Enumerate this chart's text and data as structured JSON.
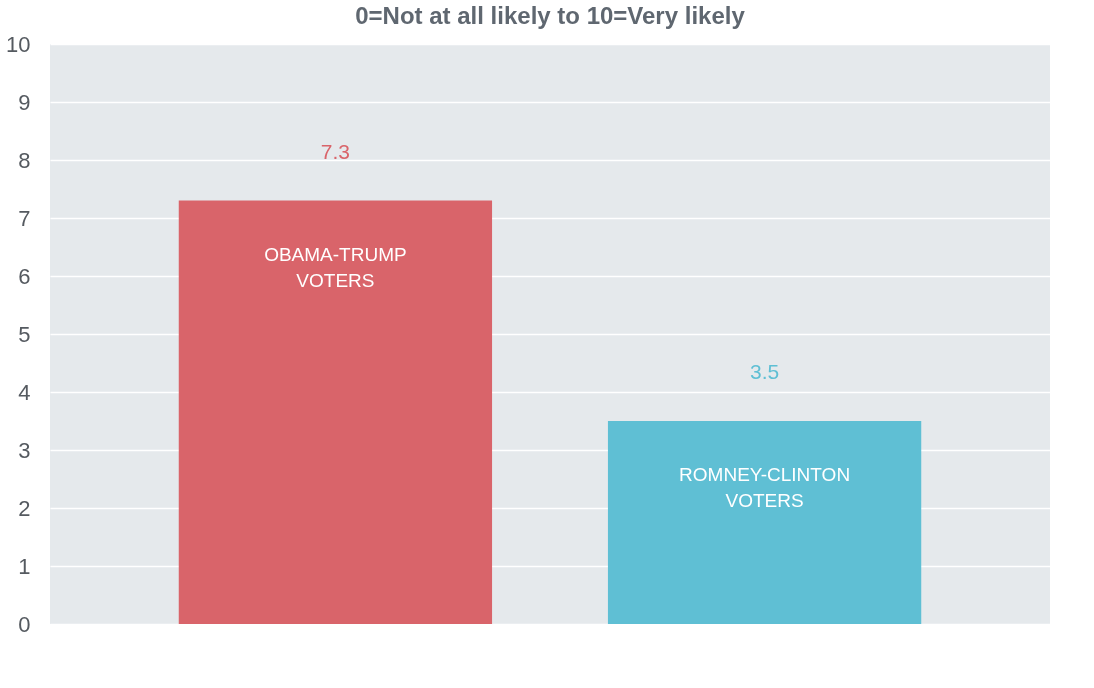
{
  "chart_data": {
    "type": "bar",
    "title": "0=Not at all likely   to   10=Very likely",
    "categories": [
      "OBAMA-TRUMP\nVOTERS",
      "ROMNEY-CLINTON\nVOTERS"
    ],
    "values": [
      7.3,
      3.5
    ],
    "colors": [
      "#d9646a",
      "#5fbfd4"
    ],
    "ylim": [
      0,
      10
    ],
    "yticks": [
      0,
      1,
      2,
      3,
      4,
      5,
      6,
      7,
      8,
      9,
      10
    ],
    "grid": "y",
    "data_labels": true
  }
}
